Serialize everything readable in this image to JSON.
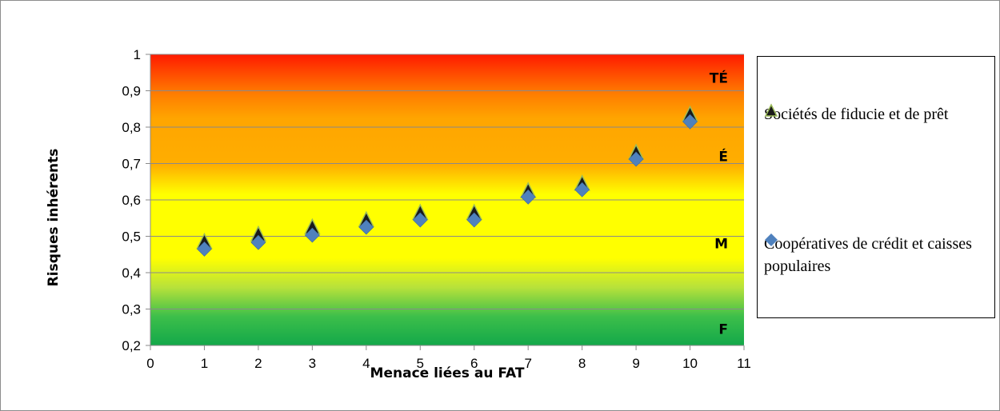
{
  "chart_data": {
    "type": "scatter",
    "xlabel": "Menace liées au FAT",
    "ylabel": "Risques inhérents",
    "xlim": [
      0,
      11
    ],
    "ylim": [
      0.2,
      1
    ],
    "x_ticks": [
      "0",
      "1",
      "2",
      "3",
      "4",
      "5",
      "6",
      "7",
      "8",
      "9",
      "10",
      "11"
    ],
    "y_ticks": [
      "0,2",
      "0,3",
      "0,4",
      "0,5",
      "0,6",
      "0,7",
      "0,8",
      "0,9",
      "1"
    ],
    "grid": true,
    "legend_position": "right",
    "background_bands": [
      {
        "label": "TÉ",
        "from": 0.85,
        "to": 1.0
      },
      {
        "label": "É",
        "from": 0.65,
        "to": 0.85
      },
      {
        "label": "M",
        "from": 0.38,
        "to": 0.65
      },
      {
        "label": "F",
        "from": 0.2,
        "to": 0.38
      }
    ],
    "series": [
      {
        "name": "Sociétés de fiducie et de prêt",
        "marker": "triangle",
        "color": "#1a1a1a",
        "x": [
          1,
          2,
          3,
          4,
          5,
          6,
          7,
          8,
          9,
          10
        ],
        "y": [
          0.48,
          0.5,
          0.52,
          0.54,
          0.56,
          0.56,
          0.62,
          0.64,
          0.725,
          0.83
        ]
      },
      {
        "name": "Coopératives de crédit et caisses populaires",
        "marker": "diamond",
        "color": "#4f81bd",
        "x": [
          1,
          2,
          3,
          4,
          5,
          6,
          7,
          8,
          9,
          10
        ],
        "y": [
          0.465,
          0.483,
          0.503,
          0.525,
          0.545,
          0.545,
          0.608,
          0.628,
          0.712,
          0.815
        ]
      }
    ]
  }
}
